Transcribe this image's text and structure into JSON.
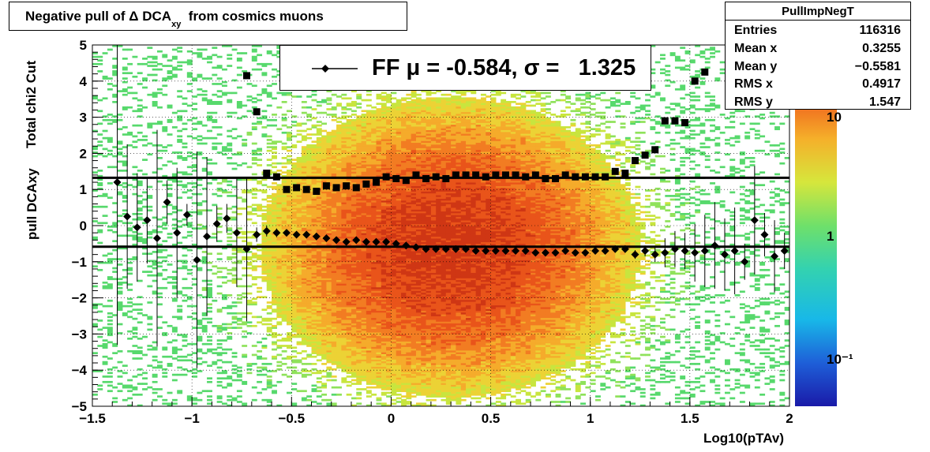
{
  "title": {
    "main": "Negative pull of Δ DCA",
    "sub": "xy",
    "rest": "from cosmics muons"
  },
  "stats": {
    "name": "PullImpNegT",
    "rows": [
      {
        "label": "Entries",
        "value": "116316"
      },
      {
        "label": "Mean x",
        "value": "0.3255"
      },
      {
        "label": "Mean y",
        "value": "−0.5581"
      },
      {
        "label": "RMS x",
        "value": "0.4917"
      },
      {
        "label": "RMS y",
        "value": "1.547"
      }
    ]
  },
  "legend": {
    "text": "FF μ = -0.584, σ =   1.325"
  },
  "side_label": "Total chi2 Cut",
  "colorbar": {
    "labels": [
      "10",
      "1",
      "10⁻¹"
    ]
  },
  "chart_data": {
    "type": "heatmap",
    "xlabel": "Log10(pTAv)",
    "ylabel": "pull DCAxy",
    "xlim": [
      -1.5,
      2
    ],
    "ylim": [
      -5,
      5
    ],
    "x_ticks": [
      "−1.5",
      "−1",
      "−0.5",
      "0",
      "0.5",
      "1",
      "1.5",
      "2"
    ],
    "y_ticks": [
      "5",
      "4",
      "3",
      "2",
      "1",
      "0",
      "−1",
      "−2",
      "−3",
      "−4",
      "−5"
    ],
    "colorbar_scale": "log",
    "grid": true,
    "fit_lines": {
      "mean": -0.584,
      "sigma": 1.325
    },
    "series": [
      {
        "name": "mean",
        "marker": "diamond",
        "x": [
          -1.375,
          -1.325,
          -1.275,
          -1.225,
          -1.175,
          -1.125,
          -1.075,
          -1.025,
          -0.975,
          -0.925,
          -0.875,
          -0.825,
          -0.775,
          -0.725,
          -0.675,
          -0.625,
          -0.575,
          -0.525,
          -0.475,
          -0.425,
          -0.375,
          -0.325,
          -0.275,
          -0.225,
          -0.175,
          -0.125,
          -0.075,
          -0.025,
          0.025,
          0.075,
          0.125,
          0.175,
          0.225,
          0.275,
          0.325,
          0.375,
          0.425,
          0.475,
          0.525,
          0.575,
          0.625,
          0.675,
          0.725,
          0.775,
          0.825,
          0.875,
          0.925,
          0.975,
          1.025,
          1.075,
          1.125,
          1.175,
          1.225,
          1.275,
          1.325,
          1.375,
          1.425,
          1.475,
          1.525,
          1.575,
          1.625,
          1.675,
          1.725,
          1.775,
          1.825,
          1.875,
          1.925,
          1.975
        ],
        "y": [
          1.2,
          0.25,
          -0.05,
          0.15,
          -0.35,
          0.65,
          -0.2,
          0.3,
          -0.95,
          -0.3,
          0.05,
          0.2,
          -0.2,
          -0.65,
          -0.25,
          -0.15,
          -0.2,
          -0.2,
          -0.25,
          -0.25,
          -0.3,
          -0.35,
          -0.4,
          -0.45,
          -0.4,
          -0.45,
          -0.45,
          -0.45,
          -0.5,
          -0.55,
          -0.6,
          -0.65,
          -0.65,
          -0.65,
          -0.65,
          -0.65,
          -0.7,
          -0.7,
          -0.7,
          -0.7,
          -0.7,
          -0.7,
          -0.75,
          -0.75,
          -0.75,
          -0.7,
          -0.75,
          -0.75,
          -0.7,
          -0.7,
          -0.65,
          -0.65,
          -0.8,
          -0.7,
          -0.8,
          -0.75,
          -0.65,
          -0.7,
          -0.75,
          -0.7,
          -0.55,
          -0.8,
          -0.7,
          -1.0,
          0.15,
          -0.25,
          -0.85,
          -0.7
        ],
        "yerr": [
          4.5,
          2.0,
          1.5,
          1.2,
          3.0,
          0.6,
          1.8,
          0.3,
          3.0,
          2.2,
          0.5,
          0.4,
          1.5,
          2.0,
          0.2,
          0.15,
          0.12,
          0.1,
          0.08,
          0.07,
          0.06,
          0.06,
          0.05,
          0.05,
          0.05,
          0.05,
          0.05,
          0.04,
          0.04,
          0.04,
          0.04,
          0.04,
          0.04,
          0.04,
          0.04,
          0.04,
          0.04,
          0.04,
          0.04,
          0.04,
          0.04,
          0.04,
          0.05,
          0.05,
          0.05,
          0.05,
          0.05,
          0.06,
          0.06,
          0.07,
          0.08,
          0.1,
          0.12,
          0.15,
          0.2,
          0.4,
          0.5,
          0.5,
          0.8,
          1.0,
          1.2,
          1.0,
          1.2,
          0.5,
          1.5,
          0.6,
          1.0,
          0.5
        ]
      },
      {
        "name": "sigma",
        "marker": "square",
        "x": [
          -0.725,
          -0.675,
          -0.625,
          -0.575,
          -0.525,
          -0.475,
          -0.425,
          -0.375,
          -0.325,
          -0.275,
          -0.225,
          -0.175,
          -0.125,
          -0.075,
          -0.025,
          0.025,
          0.075,
          0.125,
          0.175,
          0.225,
          0.275,
          0.325,
          0.375,
          0.425,
          0.475,
          0.525,
          0.575,
          0.625,
          0.675,
          0.725,
          0.775,
          0.825,
          0.875,
          0.925,
          0.975,
          1.025,
          1.075,
          1.125,
          1.175,
          1.225,
          1.275,
          1.325,
          1.375,
          1.425,
          1.475,
          1.525,
          1.575
        ],
        "y": [
          4.15,
          3.15,
          1.45,
          1.35,
          1.0,
          1.05,
          1.0,
          0.95,
          1.1,
          1.05,
          1.1,
          1.05,
          1.15,
          1.2,
          1.35,
          1.3,
          1.25,
          1.4,
          1.3,
          1.35,
          1.3,
          1.4,
          1.4,
          1.4,
          1.35,
          1.4,
          1.4,
          1.4,
          1.35,
          1.4,
          1.3,
          1.3,
          1.4,
          1.35,
          1.35,
          1.35,
          1.35,
          1.5,
          1.45,
          1.8,
          1.95,
          2.1,
          2.9,
          2.9,
          2.85,
          4.0,
          4.25
        ]
      }
    ]
  }
}
